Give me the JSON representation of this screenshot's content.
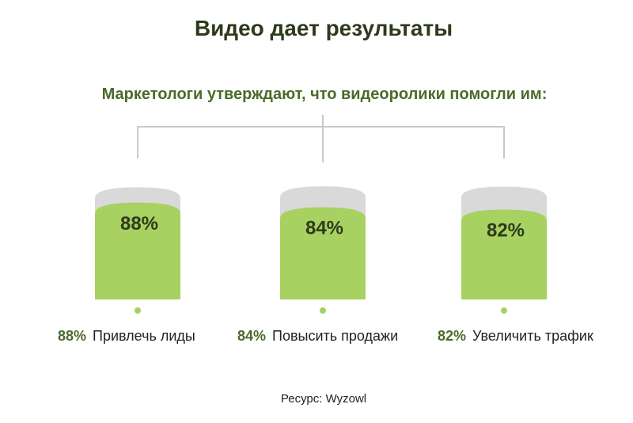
{
  "title": "Видео дает результаты",
  "subtitle": "Маркетологи утверждают, что видеоролики помогли им:",
  "source": "Ресурс: Wyzowl",
  "colors": {
    "fill": "#a7d161",
    "track": "#d9d9d9",
    "connector": "#c8c8c8",
    "dot": "#a7d161",
    "text_dark": "#2e3a1c",
    "text_green": "#4a6b2a"
  },
  "chart_data": {
    "type": "bar",
    "categories": [
      "Привлечь лиды",
      "Повысить продажи",
      "Увеличить трафик"
    ],
    "values": [
      88,
      84,
      82
    ],
    "value_labels": [
      "88%",
      "84%",
      "82%"
    ],
    "unit": "%",
    "ylim": [
      0,
      100
    ],
    "grid": false,
    "legend": "none"
  }
}
